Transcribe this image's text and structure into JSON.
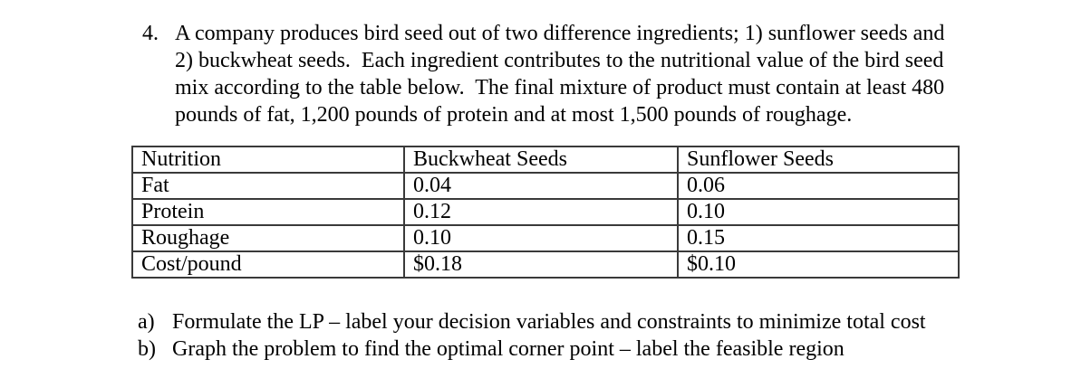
{
  "page": {
    "background_color": "#ffffff",
    "text_color": "#000000"
  },
  "problem": {
    "number": "4.",
    "lines": [
      "A company produces bird seed out of two difference ingredients; 1) sunflower seeds and",
      "2) buckwheat seeds.  Each ingredient contributes to the nutritional value of the bird seed",
      "mix according to the table below.  The final mixture of product must contain at least 480",
      "pounds of fat, 1,200 pounds of protein and at most 1,500 pounds of roughage."
    ]
  },
  "nutrition_table": {
    "border_color": "#3a3a3a",
    "columns": [
      "Nutrition",
      "Buckwheat Seeds",
      "Sunflower Seeds"
    ],
    "rows": [
      [
        "Fat",
        "0.04",
        "0.06"
      ],
      [
        "Protein",
        "0.12",
        "0.10"
      ],
      [
        "Roughage",
        "0.10",
        "0.15"
      ],
      [
        "Cost/pound",
        "$0.18",
        "$0.10"
      ]
    ]
  },
  "parts": [
    {
      "label": "a)",
      "text": "Formulate the LP – label your decision variables and constraints to minimize total cost"
    },
    {
      "label": "b)",
      "text": "Graph the problem to find the optimal corner point – label the feasible region"
    }
  ]
}
